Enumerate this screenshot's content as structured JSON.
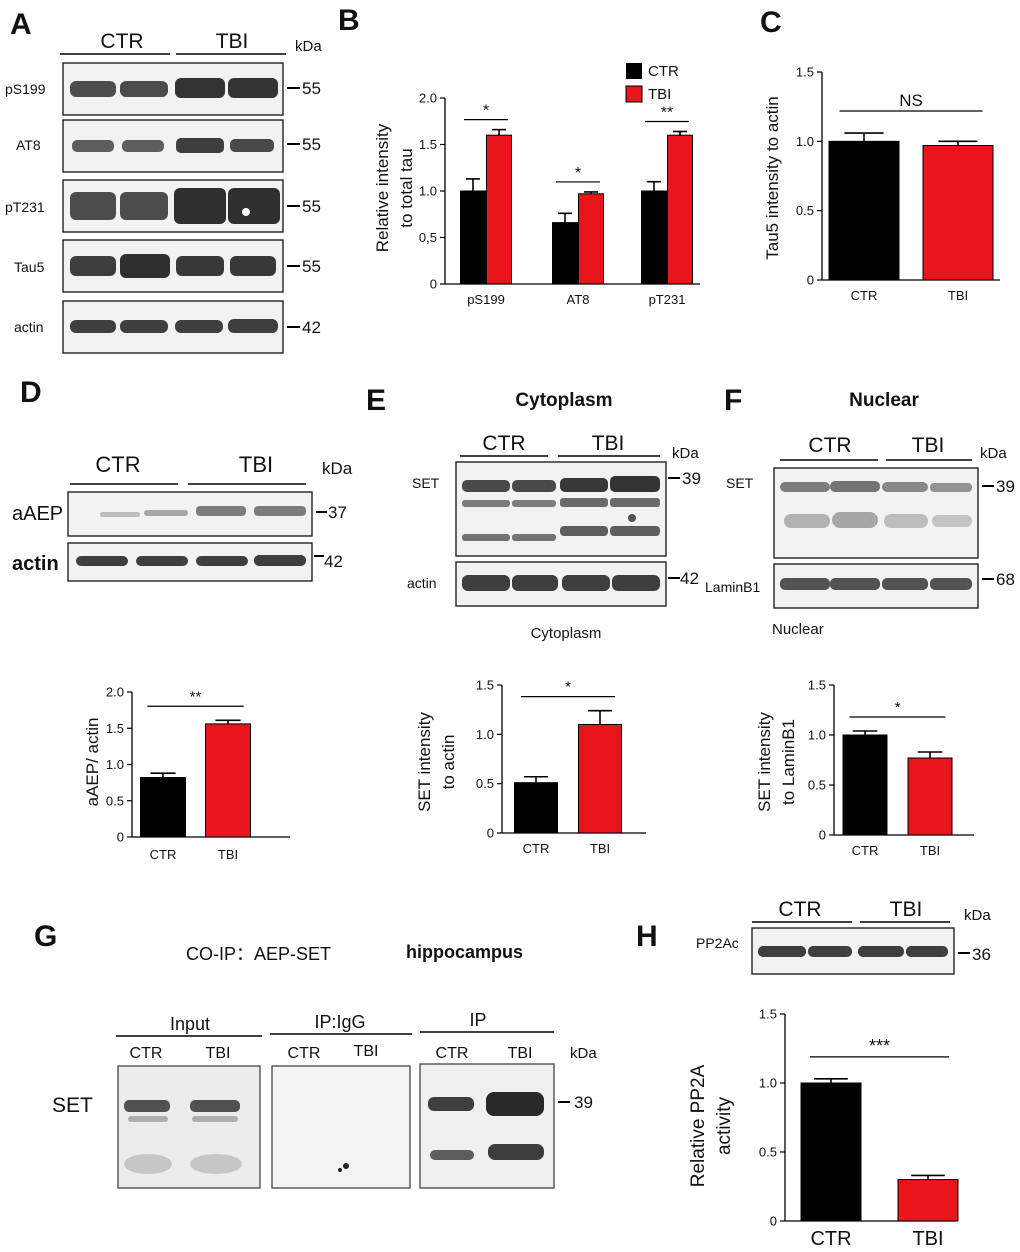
{
  "panels": {
    "A": {
      "label": "A",
      "groups": [
        "CTR",
        "TBI"
      ],
      "kda": "kDa",
      "rows": [
        {
          "name": "pS199",
          "mw": "55"
        },
        {
          "name": "AT8",
          "mw": "55"
        },
        {
          "name": "pT231",
          "mw": "55"
        },
        {
          "name": "Tau5",
          "mw": "55"
        },
        {
          "name": "actin",
          "mw": "42"
        }
      ]
    },
    "B": {
      "label": "B"
    },
    "C": {
      "label": "C"
    },
    "D": {
      "label": "D",
      "groups": [
        "CTR",
        "TBI"
      ],
      "kda": "kDa",
      "rows": [
        {
          "name": "aAEP",
          "mw": "37"
        },
        {
          "name": "actin",
          "mw": "42"
        }
      ]
    },
    "E": {
      "label": "E",
      "title": "Cytoplasm",
      "caption": "Cytoplasm",
      "groups": [
        "CTR",
        "TBI"
      ],
      "kda": "kDa",
      "rows": [
        {
          "name": "SET",
          "mw": "39"
        },
        {
          "name": "actin",
          "mw": "42"
        }
      ]
    },
    "F": {
      "label": "F",
      "title": "Nuclear",
      "caption": "Nuclear",
      "groups": [
        "CTR",
        "TBI"
      ],
      "kda": "kDa",
      "rows": [
        {
          "name": "SET",
          "mw": "39"
        },
        {
          "name": "LaminB1",
          "mw": "68"
        }
      ]
    },
    "G": {
      "label": "G",
      "title": "CO-IP：AEP-SET",
      "tissue": "hippocampus",
      "sections": [
        "Input",
        "IP:IgG",
        "IP"
      ],
      "groups": [
        "CTR",
        "TBI"
      ],
      "kda": "kDa",
      "row": "SET",
      "mw": "39"
    },
    "H": {
      "label": "H",
      "groups": [
        "CTR",
        "TBI"
      ],
      "kda": "kDa",
      "row": "PP2Ac",
      "mw": "36"
    }
  },
  "colors": {
    "ctr": "#000000",
    "tbi": "#e8151b"
  },
  "chart_data": [
    {
      "id": "B",
      "type": "bar",
      "categories": [
        "pS199",
        "AT8",
        "pT231"
      ],
      "series": [
        {
          "name": "CTR",
          "values": [
            1.0,
            0.66,
            1.0
          ],
          "errors": [
            0.13,
            0.1,
            0.1
          ]
        },
        {
          "name": "TBI",
          "values": [
            1.6,
            0.97,
            1.6
          ],
          "errors": [
            0.06,
            0.02,
            0.04
          ]
        }
      ],
      "significance": [
        "*",
        "*",
        "**"
      ],
      "ylabel": [
        "Relative intensity",
        "to total tau"
      ],
      "ylim": [
        0,
        2.0
      ],
      "yticks": [
        "0",
        "0,5",
        "1.0",
        "1.5",
        "2.0"
      ],
      "legend": [
        "CTR",
        "TBI"
      ]
    },
    {
      "id": "C",
      "type": "bar",
      "categories": [
        "CTR",
        "TBI"
      ],
      "values": [
        1.0,
        0.97
      ],
      "errors": [
        0.06,
        0.03
      ],
      "significance": "NS",
      "ylabel": [
        "Tau5 intensity to actin"
      ],
      "ylim": [
        0,
        1.5
      ],
      "yticks": [
        "0",
        "0.5",
        "1.0",
        "1.5"
      ]
    },
    {
      "id": "D",
      "type": "bar",
      "categories": [
        "CTR",
        "TBI"
      ],
      "values": [
        0.82,
        1.56
      ],
      "errors": [
        0.06,
        0.05
      ],
      "significance": "**",
      "ylabel": [
        "aAEP/ actin"
      ],
      "ylim": [
        0,
        2.0
      ],
      "yticks": [
        "0",
        "0.5",
        "1.0",
        "1.5",
        "2.0"
      ]
    },
    {
      "id": "E",
      "type": "bar",
      "categories": [
        "CTR",
        "TBI"
      ],
      "values": [
        0.51,
        1.1
      ],
      "errors": [
        0.06,
        0.14
      ],
      "significance": "*",
      "ylabel": [
        "SET intensity",
        "to actin"
      ],
      "ylim": [
        0,
        1.5
      ],
      "yticks": [
        "0",
        "0.5",
        "1.0",
        "1.5"
      ]
    },
    {
      "id": "F",
      "type": "bar",
      "categories": [
        "CTR",
        "TBI"
      ],
      "values": [
        1.0,
        0.77
      ],
      "errors": [
        0.04,
        0.06
      ],
      "significance": "*",
      "ylabel": [
        "SET intensity",
        "to LaminB1"
      ],
      "ylim": [
        0,
        1.5
      ],
      "yticks": [
        "0",
        "0.5",
        "1.0",
        "1.5"
      ]
    },
    {
      "id": "H",
      "type": "bar",
      "categories": [
        "CTR",
        "TBI"
      ],
      "values": [
        1.0,
        0.3
      ],
      "errors": [
        0.03,
        0.03
      ],
      "significance": "***",
      "ylabel": [
        "Relative PP2A",
        "activity"
      ],
      "ylim": [
        0,
        1.5
      ],
      "yticks": [
        "0",
        "0.5",
        "1.0",
        "1.5"
      ]
    }
  ]
}
